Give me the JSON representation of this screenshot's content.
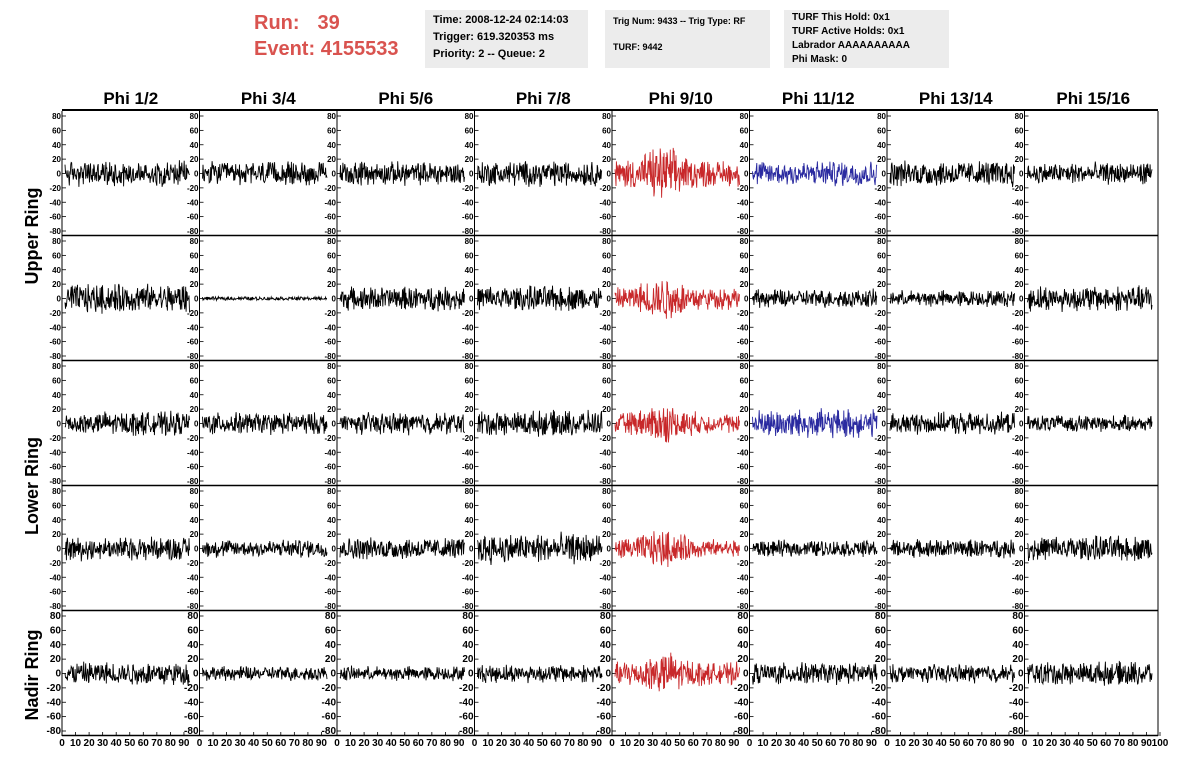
{
  "header": {
    "run_label": "Run:",
    "run_value": "39",
    "event_label": "Event:",
    "event_value": "4155533",
    "time_box": {
      "time": "Time: 2008-12-24 02:14:03",
      "trigger": "Trigger: 619.320353 ms",
      "priority": "Priority: 2 -- Queue: 2"
    },
    "trig_box": {
      "trig": "Trig Num: 9433 -- Trig Type: RF",
      "turf": "TURF: 9442"
    },
    "turf_box": {
      "hold": "TURF This Hold: 0x1",
      "active": "TURF Active Holds: 0x1",
      "labrador": "Labrador AAAAAAAAAA",
      "phimask": "Phi Mask: 0"
    }
  },
  "chart_data": {
    "type": "line",
    "description_columns": [
      "Phi 1/2",
      "Phi 3/4",
      "Phi 5/6",
      "Phi 7/8",
      "Phi 9/10",
      "Phi 11/12",
      "Phi 13/14",
      "Phi 15/16"
    ],
    "ring_labels": [
      "Upper Ring",
      "Lower Ring",
      "Nadir Ring"
    ],
    "ylim": [
      -80,
      80
    ],
    "xlim": [
      0,
      100
    ],
    "y_ticks": [
      "80",
      "60",
      "40",
      "20",
      "0",
      "-20",
      "-40",
      "-60",
      "-80"
    ],
    "x_ticks": [
      "0",
      "10",
      "20",
      "30",
      "40",
      "50",
      "60",
      "70",
      "80",
      "90",
      "100"
    ],
    "colors": {
      "default": "#000000",
      "red": "#c8282a",
      "blue": "#2a2aa0"
    },
    "rows": [
      {
        "amplitudes": [
          14,
          13,
          13,
          14,
          22,
          14,
          14,
          12
        ],
        "colors": [
          "default",
          "default",
          "default",
          "default",
          "red",
          "blue",
          "default",
          "default"
        ]
      },
      {
        "amplitudes": [
          16,
          2,
          13,
          14,
          18,
          10,
          9,
          14
        ],
        "colors": [
          "default",
          "default",
          "default",
          "default",
          "red",
          "default",
          "default",
          "default"
        ]
      },
      {
        "amplitudes": [
          13,
          12,
          12,
          14,
          16,
          16,
          12,
          9
        ],
        "colors": [
          "default",
          "default",
          "default",
          "default",
          "red",
          "blue",
          "default",
          "default"
        ]
      },
      {
        "amplitudes": [
          13,
          10,
          12,
          17,
          15,
          9,
          10,
          14
        ],
        "colors": [
          "default",
          "default",
          "default",
          "default",
          "red",
          "default",
          "default",
          "default"
        ]
      },
      {
        "amplitudes": [
          13,
          8,
          8,
          10,
          18,
          12,
          10,
          13
        ],
        "colors": [
          "default",
          "default",
          "default",
          "default",
          "red",
          "default",
          "default",
          "default"
        ]
      }
    ]
  }
}
